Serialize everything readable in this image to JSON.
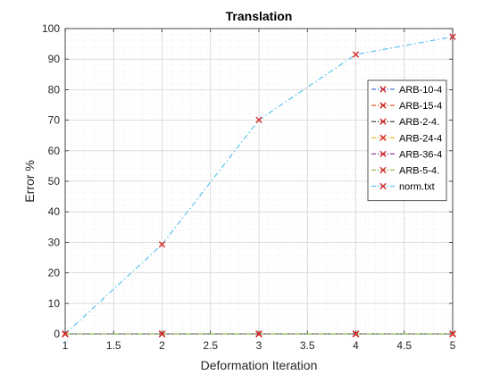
{
  "chart_data": {
    "type": "line",
    "title": "Translation",
    "xlabel": "Deformation Iteration",
    "ylabel": "Error %",
    "xlim": [
      1,
      5
    ],
    "ylim": [
      0,
      100
    ],
    "xticks": [
      1,
      1.5,
      2,
      2.5,
      3,
      3.5,
      4,
      4.5,
      5
    ],
    "xtick_labels": [
      "1",
      "1.5",
      "2",
      "2.5",
      "3",
      "3.5",
      "4",
      "4.5",
      "5"
    ],
    "yticks": [
      0,
      10,
      20,
      30,
      40,
      50,
      60,
      70,
      80,
      90,
      100
    ],
    "ytick_labels": [
      "0",
      "10",
      "20",
      "30",
      "40",
      "50",
      "60",
      "70",
      "80",
      "90",
      "100"
    ],
    "grid": true,
    "minor_grid": true,
    "legend_position": "right",
    "marker": "x",
    "marker_color": "#d62728",
    "x": [
      1,
      2,
      3,
      4,
      5
    ],
    "series": [
      {
        "name": "ARB-10-4",
        "color": "#1f4fd1",
        "values": [
          0,
          0,
          0,
          0,
          0
        ]
      },
      {
        "name": "ARB-15-4",
        "color": "#d95319",
        "values": [
          0,
          0,
          0,
          0,
          0
        ]
      },
      {
        "name": "ARB-2-4.",
        "color": "#333333",
        "values": [
          0,
          0,
          0,
          0,
          0
        ]
      },
      {
        "name": "ARB-24-4",
        "color": "#edb120",
        "values": [
          0,
          0,
          0,
          0,
          0
        ]
      },
      {
        "name": "ARB-36-4",
        "color": "#7e2f8e",
        "values": [
          0,
          0,
          0,
          0,
          0
        ]
      },
      {
        "name": "ARB-5-4.",
        "color": "#77ac30",
        "values": [
          0,
          0,
          0,
          0,
          0
        ]
      },
      {
        "name": "norm.txt",
        "color": "#4dbeee",
        "values": [
          0,
          29.3,
          70.1,
          91.5,
          97.3
        ]
      }
    ]
  }
}
